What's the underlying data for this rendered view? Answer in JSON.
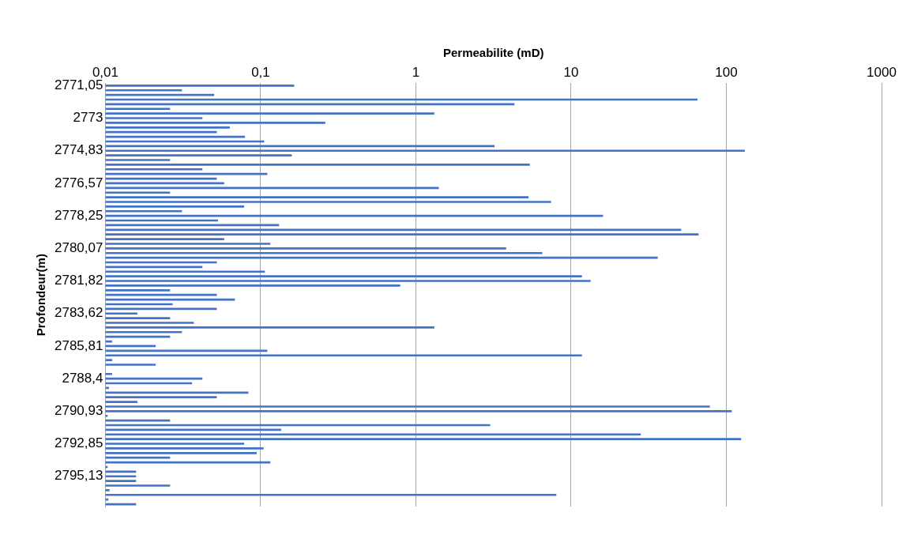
{
  "chart_data": {
    "type": "bar",
    "orientation": "horizontal",
    "xlabel": "Permeabilite (mD)",
    "ylabel": "Profondeur(m)",
    "categories": [
      "2771,05",
      null,
      null,
      null,
      null,
      null,
      null,
      "2773",
      null,
      null,
      null,
      null,
      null,
      null,
      "2774,83",
      null,
      null,
      null,
      null,
      null,
      null,
      "2776,57",
      null,
      null,
      null,
      null,
      null,
      null,
      "2778,25",
      null,
      null,
      null,
      null,
      null,
      null,
      "2780,07",
      null,
      null,
      null,
      null,
      null,
      null,
      "2781,82",
      null,
      null,
      null,
      null,
      null,
      null,
      "2783,62",
      null,
      null,
      null,
      null,
      null,
      null,
      "2785,81",
      null,
      null,
      null,
      null,
      null,
      null,
      "2788,4",
      null,
      null,
      null,
      null,
      null,
      null,
      "2790,93",
      null,
      null,
      null,
      null,
      null,
      null,
      "2792,85",
      null,
      null,
      null,
      null,
      null,
      null,
      "2795,13",
      null,
      null,
      null,
      null,
      null,
      null
    ],
    "values": [
      0.164,
      0.031,
      0.05,
      65,
      4.3,
      0.026,
      1.31,
      0.042,
      0.26,
      0.063,
      0.052,
      0.079,
      0.105,
      3.2,
      131,
      0.158,
      0.026,
      5.4,
      0.042,
      0.11,
      0.052,
      0.058,
      1.4,
      0.026,
      5.3,
      7.4,
      0.078,
      0.031,
      16,
      0.053,
      0.131,
      51,
      66,
      0.058,
      0.115,
      3.8,
      6.5,
      36,
      0.052,
      0.042,
      0.106,
      11.7,
      13.3,
      0.79,
      0.026,
      0.052,
      0.068,
      0.027,
      0.052,
      0.016,
      0.026,
      0.037,
      1.31,
      0.031,
      0.026,
      0.011,
      0.021,
      0.11,
      11.7,
      0.011,
      0.021,
      null,
      0.011,
      0.042,
      0.036,
      0.0105,
      0.083,
      0.052,
      0.016,
      78,
      108,
      0.0103,
      0.026,
      3,
      0.135,
      28,
      124,
      0.078,
      0.104,
      0.094,
      0.026,
      0.115,
      0.0103,
      0.0157,
      0.0157,
      0.0157,
      0.026,
      0.0106,
      8,
      0.0104,
      0.0157
    ],
    "color": "#4472c4",
    "log": "x",
    "xlim": [
      0.01,
      1000
    ],
    "xticks": [
      {
        "value": 0.01,
        "label": "0,01"
      },
      {
        "value": 0.1,
        "label": "0,1"
      },
      1,
      10,
      100,
      1000
    ],
    "grid": "x",
    "legend": false
  }
}
